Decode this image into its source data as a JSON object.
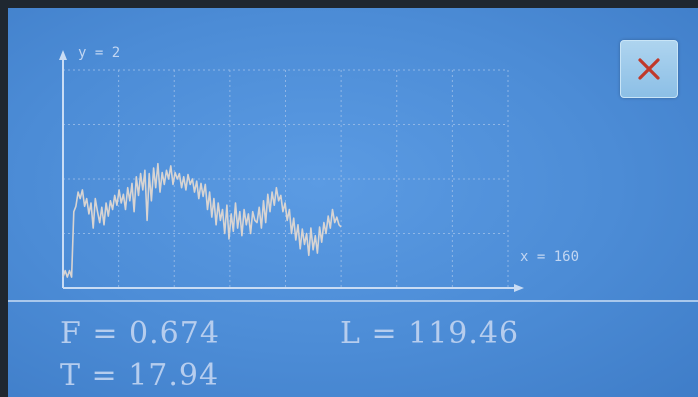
{
  "chart_data": {
    "type": "line",
    "y_annotation": "y = 2",
    "x_annotation": "x = 160",
    "grid": true,
    "xlim": [
      0,
      160
    ],
    "ylim": [
      0,
      2
    ],
    "series": [
      {
        "values": [
          0.1,
          0.16,
          0.1,
          0.16,
          0.1,
          0.7,
          0.75,
          0.88,
          0.82,
          0.9,
          0.75,
          0.82,
          0.68,
          0.78,
          0.55,
          0.82,
          0.7,
          0.6,
          0.74,
          0.58,
          0.78,
          0.66,
          0.8,
          0.72,
          0.85,
          0.76,
          0.9,
          0.78,
          0.86,
          0.72,
          0.92,
          0.8,
          0.96,
          0.7,
          1.02,
          0.85,
          1.05,
          0.9,
          1.08,
          0.62,
          1.05,
          0.8,
          1.1,
          0.92,
          1.14,
          0.88,
          1.06,
          0.95,
          1.08,
          1.0,
          1.12,
          0.95,
          1.06,
          1.0,
          1.05,
          0.92,
          1.02,
          0.9,
          1.04,
          0.95,
          1.0,
          0.88,
          0.98,
          0.82,
          0.96,
          0.84,
          0.95,
          0.72,
          0.88,
          0.65,
          0.82,
          0.58,
          0.78,
          0.62,
          0.72,
          0.5,
          0.76,
          0.45,
          0.68,
          0.52,
          0.78,
          0.55,
          0.7,
          0.48,
          0.72,
          0.58,
          0.68,
          0.5,
          0.7,
          0.62,
          0.6,
          0.74,
          0.55,
          0.8,
          0.6,
          0.86,
          0.7,
          0.88,
          0.76,
          0.92,
          0.8,
          0.85,
          0.7,
          0.78,
          0.62,
          0.72,
          0.5,
          0.64,
          0.44,
          0.58,
          0.36,
          0.54,
          0.4,
          0.5,
          0.3,
          0.55,
          0.35,
          0.48,
          0.32,
          0.56,
          0.42,
          0.6,
          0.5,
          0.66,
          0.55,
          0.72,
          0.6,
          0.65,
          0.58,
          0.56
        ]
      }
    ]
  },
  "readouts": {
    "f": "F = 0.674",
    "l": "L = 119.46",
    "t": "T = 17.94"
  },
  "close_button": {
    "icon": "close-icon",
    "color": "#c0392b"
  }
}
